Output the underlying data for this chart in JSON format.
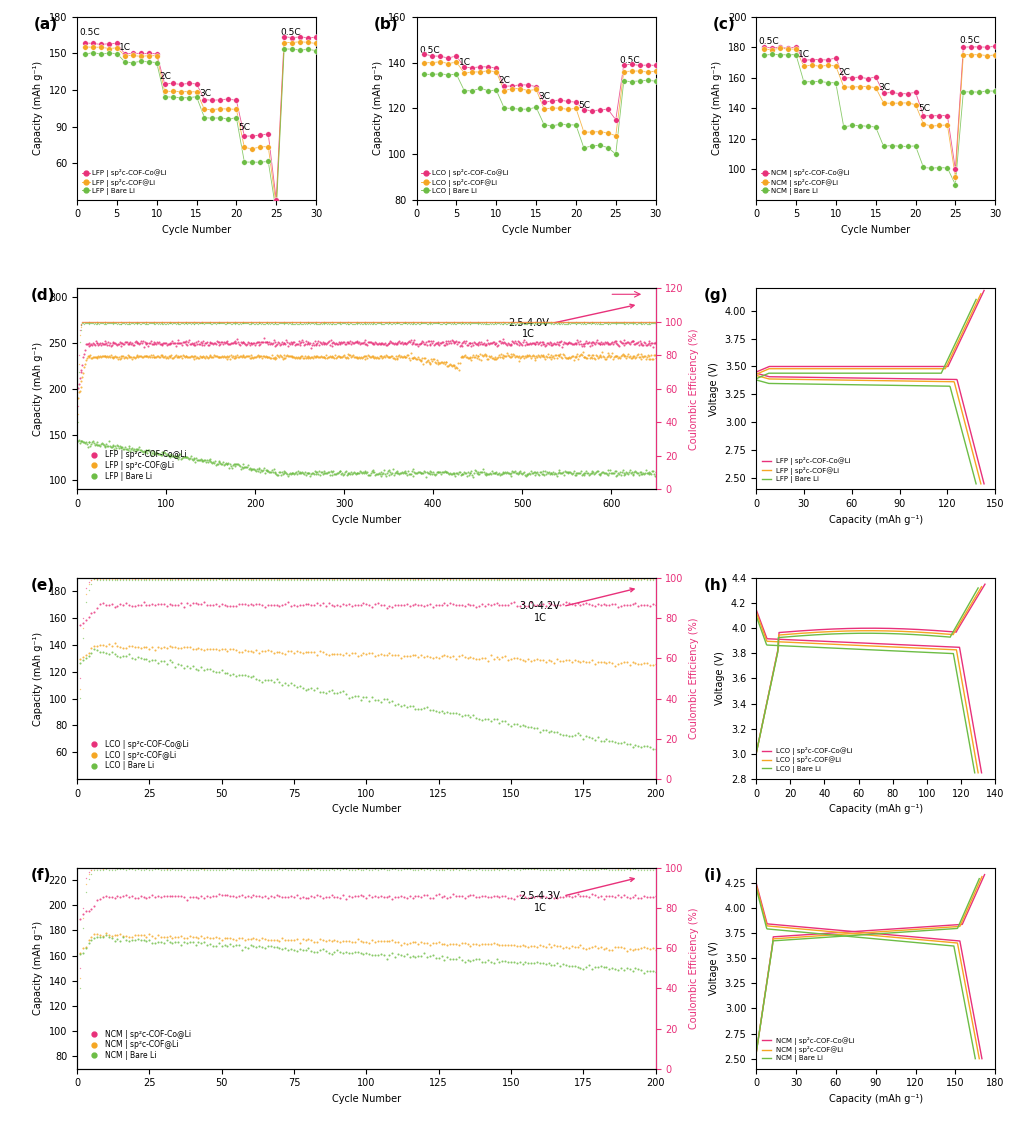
{
  "colors": {
    "pink": "#E8317A",
    "orange": "#F5A623",
    "green": "#6DBD45"
  },
  "panel_a": {
    "title": "(a)",
    "xlabel": "Cycle Number",
    "ylabel": "Capacity (mAh g⁻¹)",
    "ylim": [
      30,
      180
    ],
    "yticks": [
      60,
      90,
      120,
      150,
      180
    ],
    "xlim": [
      0,
      30
    ],
    "xticks": [
      0,
      5,
      10,
      15,
      20,
      25,
      30
    ],
    "legend": [
      "LFP | sp²c-COF-Co@Li",
      "LFP | sp²c-COF@Li",
      "LFP | Bare Li"
    ]
  },
  "panel_b": {
    "title": "(b)",
    "xlabel": "Cycle Number",
    "ylabel": "Capacity (mAh g⁻¹)",
    "ylim": [
      80,
      160
    ],
    "yticks": [
      80,
      100,
      120,
      140,
      160
    ],
    "xlim": [
      0,
      30
    ],
    "xticks": [
      0,
      5,
      10,
      15,
      20,
      25,
      30
    ],
    "legend": [
      "LCO | sp²c-COF-Co@Li",
      "LCO | sp²c-COF@Li",
      "LCO | Bare Li"
    ]
  },
  "panel_c": {
    "title": "(c)",
    "xlabel": "Cycle Number",
    "ylabel": "Capacity (mAh g⁻¹)",
    "ylim": [
      80,
      200
    ],
    "yticks": [
      100,
      120,
      140,
      160,
      180,
      200
    ],
    "xlim": [
      0,
      30
    ],
    "xticks": [
      0,
      5,
      10,
      15,
      20,
      25,
      30
    ],
    "legend": [
      "NCM | sp²c-COF-Co@Li",
      "NCM | sp²c-COF@Li",
      "NCM | Bare Li"
    ]
  },
  "panel_d": {
    "title": "(d)",
    "xlabel": "Cycle Number",
    "ylabel": "Capacity (mAh g⁻¹)",
    "ylabel_right": "Coulombic Efficiency (%)",
    "ylim": [
      90,
      310
    ],
    "ylim_right": [
      0,
      120
    ],
    "yticks": [
      100,
      150,
      200,
      250,
      300
    ],
    "xlim": [
      0,
      650
    ],
    "annotation": "2.5-4.0V\n1C",
    "legend": [
      "LFP | sp²c-COF-Co@Li",
      "LFP | sp²c-COF@Li",
      "LFP | Bare Li"
    ]
  },
  "panel_e": {
    "title": "(e)",
    "xlabel": "Cycle Number",
    "ylabel": "Capacity (mAh g⁻¹)",
    "ylabel_right": "Coulombic Efficiency (%)",
    "ylim": [
      40,
      190
    ],
    "ylim_right": [
      0,
      100
    ],
    "yticks": [
      60,
      80,
      100,
      120,
      140,
      160,
      180
    ],
    "xlim": [
      0,
      200
    ],
    "annotation": "3.0-4.2V\n1C",
    "legend": [
      "LCO | sp²c-COF-Co@Li",
      "LCO | sp²c-COF@Li",
      "LCO | Bare Li"
    ]
  },
  "panel_f": {
    "title": "(f)",
    "xlabel": "Cycle Number",
    "ylabel": "Capacity (mAh g⁻¹)",
    "ylabel_right": "Coulombic Efficiency (%)",
    "ylim": [
      70,
      230
    ],
    "ylim_right": [
      0,
      100
    ],
    "yticks": [
      80,
      100,
      120,
      140,
      160,
      180,
      200,
      220
    ],
    "xlim": [
      0,
      200
    ],
    "annotation": "2.5-4.3V\n1C",
    "legend": [
      "NCM | sp²c-COF-Co@Li",
      "NCM | sp²c-COF@Li",
      "NCM | Bare Li"
    ]
  },
  "panel_g": {
    "title": "(g)",
    "xlabel": "Capacity (mAh g⁻¹)",
    "ylabel": "Voltage (V)",
    "ylim": [
      2.4,
      4.2
    ],
    "xlim": [
      0,
      150
    ],
    "xticks": [
      0,
      30,
      60,
      90,
      120,
      150
    ],
    "legend": [
      "LFP | sp²c-COF-Co@Li",
      "LFP | sp²c-COF@Li",
      "LFP | Bare Li"
    ]
  },
  "panel_h": {
    "title": "(h)",
    "xlabel": "Capacity (mAh g⁻¹)",
    "ylabel": "Voltage (V)",
    "ylim": [
      2.8,
      4.4
    ],
    "xlim": [
      0,
      140
    ],
    "xticks": [
      0,
      20,
      40,
      60,
      80,
      100,
      120,
      140
    ],
    "legend": [
      "LCO | sp²c-COF-Co@Li",
      "LCO | sp²c-COF@Li",
      "LCO | Bare Li"
    ]
  },
  "panel_i": {
    "title": "(i)",
    "xlabel": "Capacity (mAh g⁻¹)",
    "ylabel": "Voltage (V)",
    "ylim": [
      2.4,
      4.4
    ],
    "xlim": [
      0,
      180
    ],
    "xticks": [
      0,
      30,
      60,
      90,
      120,
      150,
      180
    ],
    "legend": [
      "NCM | sp²c-COF-Co@Li",
      "NCM | sp²c-COF@Li",
      "NCM | Bare Li"
    ]
  }
}
